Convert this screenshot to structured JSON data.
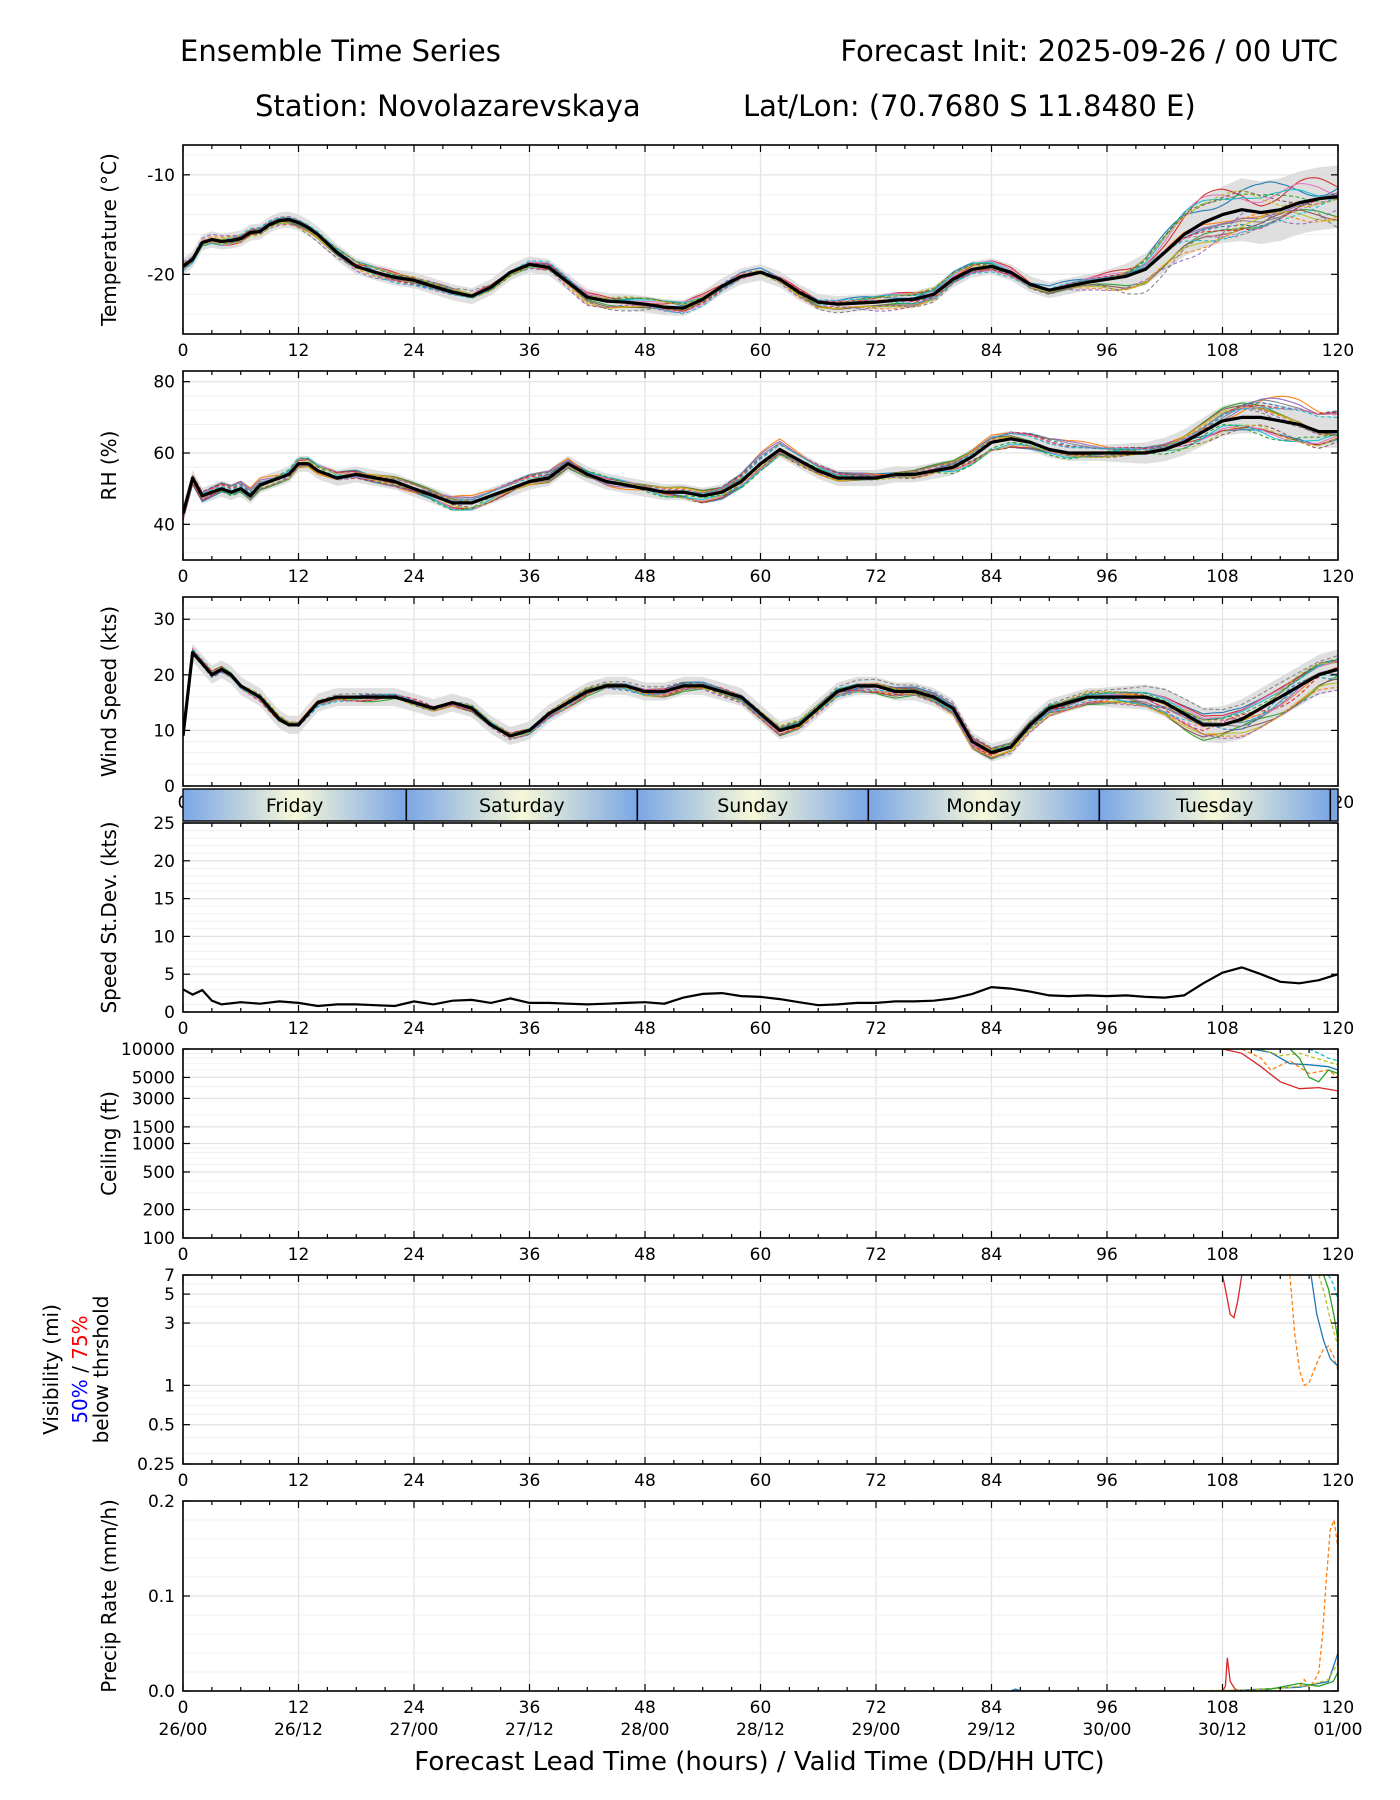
{
  "header": {
    "title_left": "Ensemble Time Series",
    "title_right": "Forecast Init: 2025-09-26 / 00 UTC",
    "station": "Station: Novolazarevskaya",
    "latlon": "Lat/Lon: (70.7680 S 11.8480 E)"
  },
  "colors": {
    "member_palette": [
      "#1f77b4",
      "#ff7f0e",
      "#2ca02c",
      "#d62728",
      "#9467bd",
      "#8c564b",
      "#e377c2",
      "#7f7f7f",
      "#bcbd22",
      "#17becf"
    ],
    "mean": "#000000",
    "spread_fill": "#d9d9d9",
    "grid": "#e4e4e4",
    "day_edge": "#7aa6e6",
    "day_center": "#f7f8d8",
    "vis_50": "#0000ff",
    "vis_75": "#ff0000"
  },
  "chart_data": {
    "type": "line",
    "x_label": "Forecast Lead Time (hours) / Valid Time (DD/HH UTC)",
    "x_range": [
      0,
      120
    ],
    "x_ticks": [
      0,
      12,
      24,
      36,
      48,
      60,
      72,
      84,
      96,
      108,
      120
    ],
    "valid_time_labels": [
      "26/00",
      "26/12",
      "27/00",
      "27/12",
      "28/00",
      "28/12",
      "29/00",
      "29/12",
      "30/00",
      "30/12",
      "01/00"
    ],
    "members": 20,
    "day_band": {
      "days": [
        "Friday",
        "Saturday",
        "Sunday",
        "Monday",
        "Tuesday"
      ],
      "boundaries_h": [
        23.2,
        47.2,
        71.2,
        95.2,
        119.2
      ]
    },
    "panels": [
      {
        "id": "temperature",
        "ylabel": "Temperature (°C)",
        "ylim": [
          -26,
          -7
        ],
        "yticks": [
          -20,
          -10
        ],
        "scale": "linear",
        "mean": {
          "x": [
            0,
            1,
            2,
            3,
            4,
            5,
            6,
            7,
            8,
            9,
            10,
            11,
            12,
            13,
            14,
            16,
            18,
            20,
            22,
            24,
            26,
            28,
            30,
            32,
            34,
            36,
            38,
            40,
            42,
            44,
            46,
            48,
            50,
            52,
            54,
            56,
            58,
            60,
            62,
            64,
            66,
            68,
            70,
            72,
            74,
            76,
            78,
            80,
            82,
            84,
            86,
            88,
            90,
            92,
            94,
            96,
            98,
            100,
            102,
            104,
            106,
            108,
            110,
            112,
            114,
            116,
            118,
            120
          ],
          "y": [
            -19.2,
            -18.5,
            -16.8,
            -16.5,
            -16.7,
            -16.6,
            -16.4,
            -15.8,
            -15.7,
            -15.0,
            -14.6,
            -14.5,
            -14.8,
            -15.3,
            -16.0,
            -17.8,
            -19.2,
            -19.8,
            -20.3,
            -20.6,
            -21.2,
            -21.8,
            -22.2,
            -21.3,
            -19.8,
            -19.0,
            -19.3,
            -20.8,
            -22.3,
            -22.7,
            -22.8,
            -23.0,
            -23.3,
            -23.4,
            -22.5,
            -21.2,
            -20.2,
            -19.8,
            -20.5,
            -21.8,
            -22.8,
            -23.0,
            -22.9,
            -22.8,
            -22.6,
            -22.5,
            -22.0,
            -20.5,
            -19.5,
            -19.2,
            -19.8,
            -21.0,
            -21.6,
            -21.2,
            -20.8,
            -20.5,
            -20.2,
            -19.5,
            -17.8,
            -16.0,
            -14.8,
            -14.0,
            -13.5,
            -13.8,
            -13.5,
            -12.8,
            -12.4,
            -12.2
          ]
        },
        "spread": 0.9,
        "spread_late": 3.5
      },
      {
        "id": "rh",
        "ylabel": "RH (%)",
        "ylim": [
          30,
          83
        ],
        "yticks": [
          40,
          60,
          80
        ],
        "scale": "linear",
        "mean": {
          "x": [
            0,
            1,
            2,
            3,
            4,
            5,
            6,
            7,
            8,
            9,
            10,
            11,
            12,
            13,
            14,
            16,
            18,
            20,
            22,
            24,
            26,
            28,
            30,
            32,
            34,
            36,
            38,
            40,
            42,
            44,
            46,
            48,
            50,
            52,
            54,
            56,
            58,
            60,
            62,
            64,
            66,
            68,
            70,
            72,
            74,
            76,
            78,
            80,
            82,
            84,
            86,
            88,
            90,
            92,
            94,
            96,
            98,
            100,
            102,
            104,
            106,
            108,
            110,
            112,
            114,
            116,
            118,
            120
          ],
          "y": [
            43,
            53,
            48,
            49,
            50,
            49,
            50,
            48,
            51,
            52,
            53,
            54,
            57,
            57,
            55,
            53,
            54,
            53,
            52,
            50,
            48,
            46,
            46,
            48,
            50,
            52,
            53,
            57,
            54,
            52,
            51,
            50,
            49,
            49,
            48,
            49,
            52,
            57,
            61,
            58,
            55,
            53,
            53,
            53,
            54,
            54,
            55,
            56,
            59,
            63,
            64,
            63,
            61,
            60,
            60,
            60,
            60,
            60,
            61,
            63,
            66,
            69,
            70,
            70,
            69,
            68,
            66,
            66
          ]
        },
        "spread": 2.5,
        "spread_late": 5
      },
      {
        "id": "wind",
        "ylabel": "Wind Speed (kts)",
        "ylim": [
          0,
          34
        ],
        "yticks": [
          0,
          10,
          20,
          30
        ],
        "scale": "linear",
        "mean": {
          "x": [
            0,
            1,
            2,
            3,
            4,
            5,
            6,
            7,
            8,
            9,
            10,
            11,
            12,
            13,
            14,
            16,
            18,
            20,
            22,
            24,
            26,
            28,
            30,
            32,
            34,
            36,
            38,
            40,
            42,
            44,
            46,
            48,
            50,
            52,
            54,
            56,
            58,
            60,
            62,
            64,
            66,
            68,
            70,
            72,
            74,
            76,
            78,
            80,
            82,
            84,
            86,
            88,
            90,
            92,
            94,
            96,
            98,
            100,
            102,
            104,
            106,
            108,
            110,
            112,
            114,
            116,
            118,
            120
          ],
          "y": [
            9,
            24,
            22,
            20,
            21,
            20,
            18,
            17,
            16,
            14,
            12,
            11,
            11,
            13,
            15,
            16,
            16,
            16,
            16,
            15,
            14,
            15,
            14,
            11,
            9,
            10,
            13,
            15,
            17,
            18,
            18,
            17,
            17,
            18,
            18,
            17,
            16,
            13,
            10,
            11,
            14,
            17,
            18,
            18,
            17,
            17,
            16,
            14,
            8,
            6,
            7,
            11,
            14,
            15,
            16,
            16,
            16,
            16,
            15,
            13,
            11,
            11,
            12,
            14,
            16,
            18,
            20,
            21
          ]
        },
        "spread": 1.8,
        "spread_late": 4
      },
      {
        "id": "stdev",
        "ylabel": "Speed St.Dev. (kts)",
        "ylim": [
          0,
          25
        ],
        "yticks": [
          0,
          5,
          10,
          15,
          20,
          25
        ],
        "scale": "linear",
        "line": {
          "x": [
            0,
            1,
            2,
            3,
            4,
            6,
            8,
            10,
            12,
            14,
            16,
            18,
            20,
            22,
            24,
            26,
            28,
            30,
            32,
            34,
            36,
            38,
            40,
            42,
            44,
            46,
            48,
            50,
            52,
            54,
            56,
            58,
            60,
            62,
            64,
            66,
            68,
            70,
            72,
            74,
            76,
            78,
            80,
            82,
            84,
            86,
            88,
            90,
            92,
            94,
            96,
            98,
            100,
            102,
            104,
            106,
            108,
            110,
            112,
            114,
            116,
            118,
            120
          ],
          "y": [
            3.0,
            2.3,
            2.9,
            1.5,
            1.0,
            1.3,
            1.1,
            1.4,
            1.2,
            0.8,
            1.0,
            1.0,
            0.9,
            0.8,
            1.4,
            1.0,
            1.5,
            1.6,
            1.2,
            1.8,
            1.2,
            1.2,
            1.1,
            1.0,
            1.1,
            1.2,
            1.3,
            1.1,
            1.9,
            2.4,
            2.5,
            2.1,
            2.0,
            1.7,
            1.3,
            0.9,
            1.0,
            1.2,
            1.2,
            1.4,
            1.4,
            1.5,
            1.8,
            2.4,
            3.3,
            3.1,
            2.7,
            2.2,
            2.1,
            2.2,
            2.1,
            2.2,
            2.0,
            1.9,
            2.2,
            3.8,
            5.2,
            5.9,
            5.0,
            4.0,
            3.8,
            4.2,
            5.0
          ]
        }
      },
      {
        "id": "ceiling",
        "ylabel": "Ceiling (ft)",
        "ylim": [
          100,
          10000
        ],
        "yticks": [
          100,
          200,
          500,
          1000,
          1500,
          3000,
          5000,
          10000
        ],
        "scale": "log",
        "traces": [
          {
            "x": [
              108,
              110,
              112,
              114,
              116,
              118,
              120
            ],
            "y": [
              10000,
              9000,
              6500,
              4500,
              3800,
              3900,
              3600
            ]
          },
          {
            "x": [
              110,
              112,
              113,
              115,
              117,
              119,
              120
            ],
            "y": [
              10000,
              8000,
              6000,
              7500,
              5500,
              6000,
              5000
            ]
          },
          {
            "x": [
              111,
              113,
              115,
              117,
              119,
              120
            ],
            "y": [
              10000,
              9200,
              7000,
              6800,
              6500,
              6000
            ]
          },
          {
            "x": [
              112,
              114,
              116,
              118,
              120
            ],
            "y": [
              10000,
              8500,
              9000,
              7800,
              6800
            ]
          },
          {
            "x": [
              115,
              116,
              117,
              118,
              119,
              120
            ],
            "y": [
              10000,
              8000,
              5000,
              4500,
              6000,
              5500
            ]
          },
          {
            "x": [
              117,
              118,
              119,
              120
            ],
            "y": [
              10000,
              9000,
              8000,
              7500
            ]
          }
        ]
      },
      {
        "id": "visibility",
        "ylabel_lines": [
          "Visibility (mi)",
          "50% / 75%",
          "below thrshold"
        ],
        "legend_50": "50%",
        "legend_sep": "/",
        "legend_75": "75%",
        "ylim": [
          0.25,
          7
        ],
        "yticks": [
          0.25,
          0.5,
          1,
          3,
          5,
          7
        ],
        "scale": "log",
        "traces": [
          {
            "x": [
              108,
              108.4,
              108.8,
              109.2,
              109.6,
              110
            ],
            "y": [
              7,
              5,
              3.5,
              3.3,
              4.5,
              7
            ]
          },
          {
            "x": [
              115,
              115.5,
              116,
              116.5,
              117,
              117.5,
              118,
              118.5,
              119,
              119.5,
              120
            ],
            "y": [
              7,
              2.5,
              1.3,
              1.0,
              1.05,
              1.3,
              1.6,
              1.9,
              2.0,
              1.7,
              1.3
            ]
          },
          {
            "x": [
              117.2,
              117.8,
              118.5,
              119.2,
              120
            ],
            "y": [
              7,
              3.5,
              2.2,
              1.6,
              1.4
            ]
          },
          {
            "x": [
              118,
              118.6,
              119.2,
              120
            ],
            "y": [
              7,
              5,
              3.2,
              2.0
            ]
          },
          {
            "x": [
              118.5,
              119,
              119.6,
              120
            ],
            "y": [
              7,
              5.5,
              3.4,
              2.2
            ]
          },
          {
            "x": [
              119,
              119.5,
              120
            ],
            "y": [
              7,
              6,
              4.5
            ]
          }
        ]
      },
      {
        "id": "precip",
        "ylabel": "Precip Rate (mm/h)",
        "ylim": [
          0,
          0.2
        ],
        "yticks": [
          0.0,
          0.1,
          0.2
        ],
        "ytick_labels": [
          "0.0",
          "0.1",
          "0.2"
        ],
        "scale": "linear",
        "traces": [
          {
            "x": [
              108,
              108.3,
              108.5,
              108.8,
              109.3,
              110,
              120
            ],
            "y": [
              0,
              0.005,
              0.035,
              0.01,
              0.002,
              0,
              0
            ]
          },
          {
            "x": [
              110,
              112,
              114,
              116,
              116.5,
              117,
              117.5,
              118,
              118.4,
              118.8,
              119.2,
              119.6,
              120
            ],
            "y": [
              0,
              0.002,
              0.003,
              0.005,
              0.012,
              0.004,
              0.01,
              0.02,
              0.06,
              0.12,
              0.17,
              0.18,
              0.15
            ]
          },
          {
            "x": [
              86,
              86.5,
              87,
              108,
              112,
              116,
              119,
              120
            ],
            "y": [
              0,
              0.002,
              0,
              0,
              0.002,
              0.004,
              0.01,
              0.04
            ]
          },
          {
            "x": [
              104,
              110,
              114,
              117,
              119,
              120
            ],
            "y": [
              0,
              0.001,
              0.003,
              0.006,
              0.012,
              0.03
            ]
          },
          {
            "x": [
              112,
              114,
              116,
              118,
              119.5,
              120
            ],
            "y": [
              0,
              0.004,
              0.008,
              0.005,
              0.01,
              0.02
            ]
          }
        ]
      }
    ]
  }
}
